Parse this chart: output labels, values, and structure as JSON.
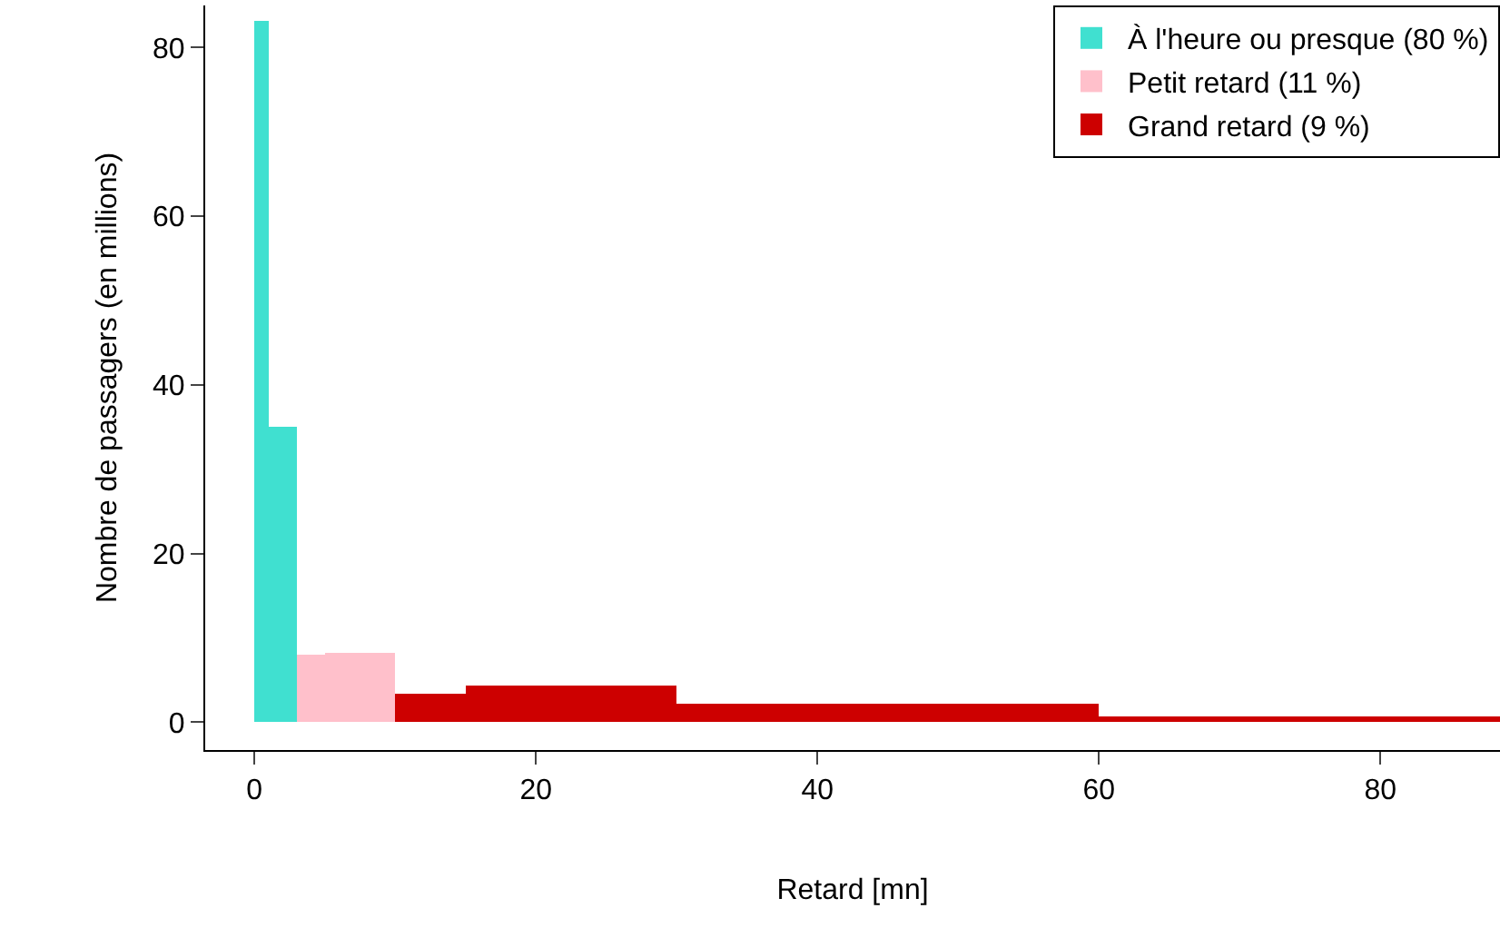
{
  "chart_data": {
    "type": "histogram",
    "xlabel": "Retard [mn]",
    "ylabel": "Nombre de passagers (en millions)",
    "bins": [
      0,
      1,
      3,
      5,
      10,
      15,
      30,
      60,
      88.5
    ],
    "series": [
      {
        "name": "À l'heure ou presque (80 %)",
        "color": "#40e0d0",
        "values": [
          83.2,
          35,
          null,
          null,
          null,
          null,
          null,
          null
        ]
      },
      {
        "name": "Petit retard (11 %)",
        "color": "#ffc0cb",
        "values": [
          null,
          null,
          8,
          8.2,
          null,
          null,
          null,
          null
        ]
      },
      {
        "name": "Grand retard (9 %)",
        "color": "#cd0000",
        "values": [
          null,
          null,
          null,
          null,
          3.4,
          4.3,
          2.2,
          0.7
        ]
      }
    ],
    "xlim": [
      -3.5,
      88.5
    ],
    "xticks": [
      0,
      20,
      40,
      60,
      80
    ],
    "ylim": [
      -3.3,
      85
    ],
    "yticks": [
      0,
      20,
      40,
      60,
      80
    ],
    "grid": false,
    "legend": "top right"
  }
}
